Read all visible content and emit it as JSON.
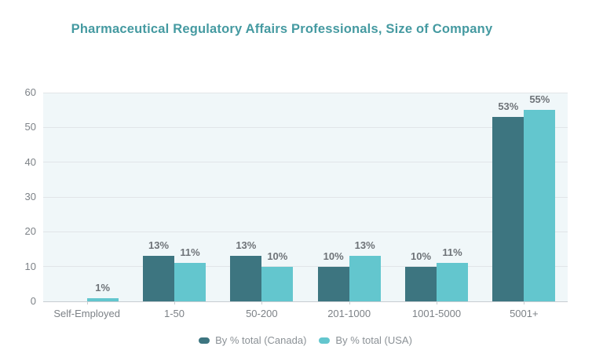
{
  "title": "Pharmaceutical Regulatory Affairs Professionals, Size of Company",
  "colors": {
    "title": "#459aa1",
    "canada": "#3d7580",
    "usa": "#63c6ce",
    "plot_bg": "#f0f7f9",
    "gridline": "#e1e5e8",
    "baseline": "#c8cdd1",
    "axis_text": "#7d8287",
    "value_text": "#6e7378",
    "legend_text": "#8b9196"
  },
  "chart_data": {
    "type": "bar",
    "title": "Pharmaceutical Regulatory Affairs Professionals, Size of Company",
    "categories": [
      "Self-Employed",
      "1-50",
      "50-200",
      "201-1000",
      "1001-5000",
      "5001+"
    ],
    "series": [
      {
        "name": "By % total (Canada)",
        "color_key": "canada",
        "values": [
          null,
          13,
          13,
          10,
          10,
          53
        ]
      },
      {
        "name": "By % total (USA)",
        "color_key": "usa",
        "values": [
          1,
          11,
          10,
          13,
          11,
          55
        ]
      }
    ],
    "value_suffix": "%",
    "xlabel": "",
    "ylabel": "",
    "ylim": [
      0,
      60
    ],
    "yticks": [
      0,
      10,
      20,
      30,
      40,
      50,
      60
    ],
    "grid": true,
    "legend_position": "bottom"
  }
}
